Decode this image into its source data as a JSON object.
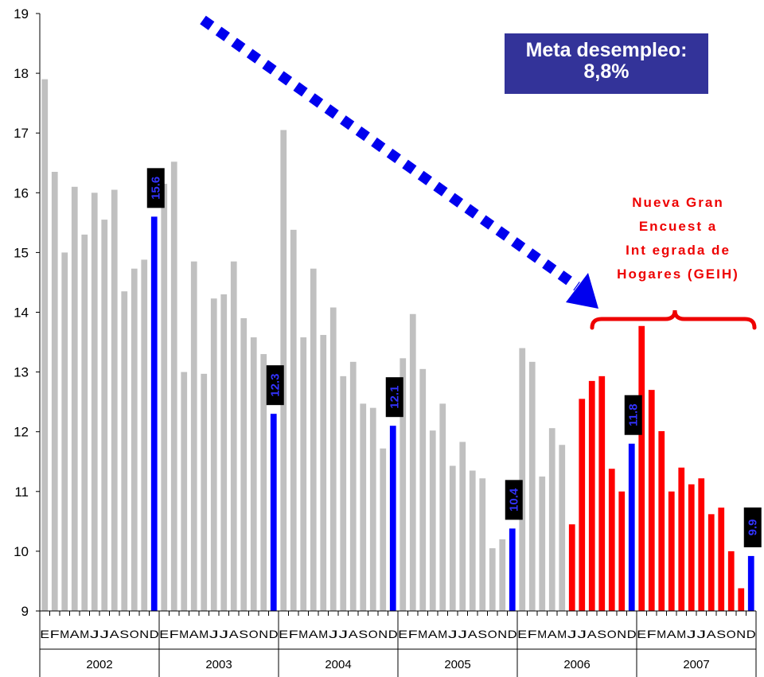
{
  "chart_data": {
    "type": "bar",
    "title": "",
    "xlabel": "",
    "ylabel": "",
    "ylim": [
      9,
      19
    ],
    "yticks": [
      "9",
      "10",
      "11",
      "12",
      "13",
      "14",
      "15",
      "16",
      "17",
      "18",
      "19"
    ],
    "years": [
      "2002",
      "2003",
      "2004",
      "2005",
      "2006",
      "2007"
    ],
    "month_tick_labels": [
      "E",
      "F",
      "M",
      "A",
      "M",
      "J",
      "J",
      "A",
      "S",
      "O",
      "N",
      "D"
    ],
    "values": [
      17.9,
      16.35,
      15.0,
      16.1,
      15.3,
      16.0,
      15.55,
      16.05,
      14.35,
      14.73,
      14.88,
      15.6,
      16.15,
      16.52,
      13.0,
      14.85,
      12.97,
      14.23,
      14.3,
      14.85,
      13.9,
      13.58,
      13.3,
      12.3,
      17.05,
      15.38,
      13.58,
      14.73,
      13.62,
      14.08,
      12.93,
      13.17,
      12.47,
      12.4,
      11.72,
      12.1,
      13.23,
      13.97,
      13.05,
      12.02,
      12.47,
      11.43,
      11.83,
      11.35,
      11.22,
      10.05,
      10.2,
      10.38,
      13.4,
      13.17,
      11.25,
      12.06,
      11.78,
      10.45,
      12.55,
      12.85,
      12.93,
      11.38,
      11.0,
      11.8,
      13.77,
      12.7,
      12.01,
      11.0,
      11.4,
      11.12,
      11.22,
      10.62,
      10.73,
      10.0,
      9.38,
      9.92
    ],
    "series": [
      {
        "color": "#c0c0c0",
        "role": "monthly rate (old survey)"
      },
      {
        "color": "#ff0000",
        "role": "monthly rate (GEIH)"
      },
      {
        "color": "#0000ff",
        "role": "December"
      }
    ],
    "data_labels": [
      {
        "index": 11,
        "text": "15.6"
      },
      {
        "index": 23,
        "text": "12.3"
      },
      {
        "index": 35,
        "text": "12.1"
      },
      {
        "index": 47,
        "text": "10.4"
      },
      {
        "index": 59,
        "text": "11.8"
      },
      {
        "index": 71,
        "text": "9.9"
      }
    ],
    "annotations": {
      "target_box": {
        "line1": "Meta desempleo:",
        "line2": "8,8%"
      },
      "new_survey": [
        "Nueva Gran",
        "Encuest a",
        "Int egrada de",
        "Hogares (GEIH)"
      ]
    },
    "grid": false,
    "legend": "none"
  }
}
